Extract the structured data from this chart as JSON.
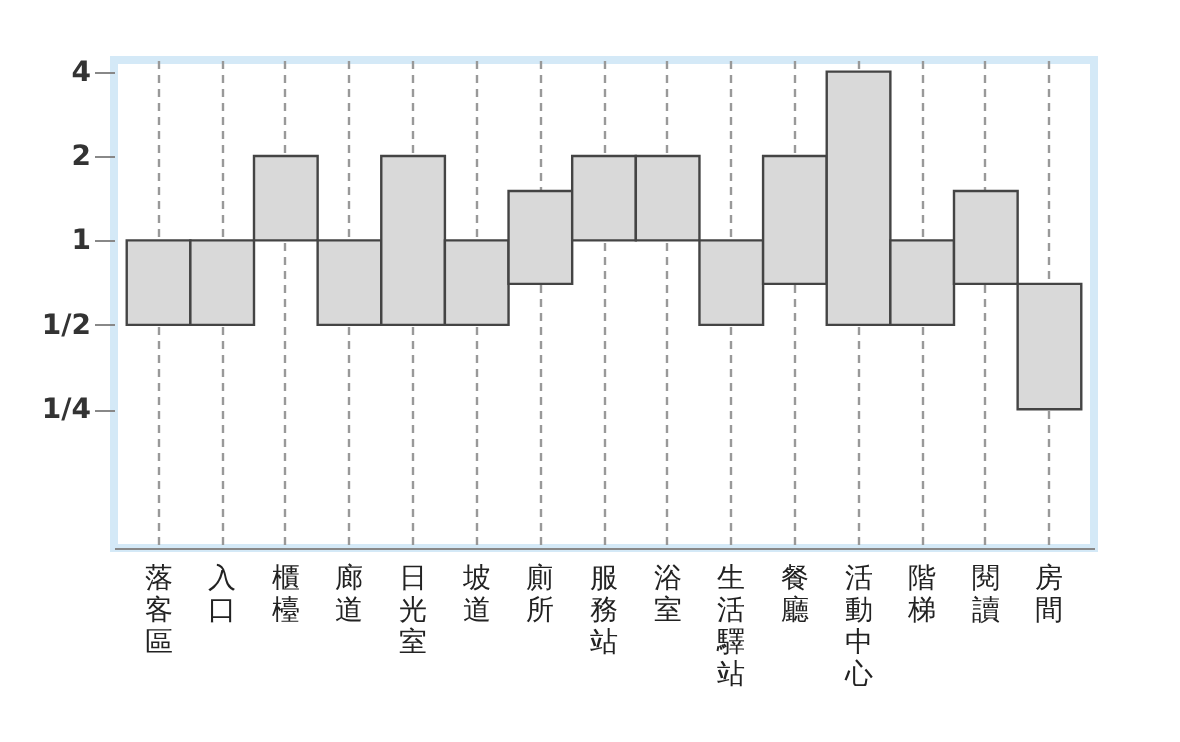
{
  "chart_data": {
    "type": "bar",
    "categories": [
      "落客區",
      "入口",
      "櫃檯",
      "廊道",
      "日光室",
      "坡道",
      "廁所",
      "服務站",
      "浴室",
      "生活驛站",
      "餐廳",
      "活動中心",
      "階梯",
      "閱讀",
      "房間"
    ],
    "base": [
      0.5,
      0.5,
      1,
      0.5,
      0.5,
      0.5,
      0.7,
      1,
      1,
      0.5,
      0.7,
      0.5,
      0.5,
      0.7,
      0.25
    ],
    "values": [
      0.5,
      0.5,
      1,
      0.5,
      1.5,
      0.5,
      0.8,
      1,
      1,
      0.5,
      1.3,
      3.5,
      0.5,
      0.8,
      0.45
    ],
    "color": "#d9d9d9",
    "log": true,
    "ylim": [
      0.08,
      4.4
    ],
    "yticks": [
      {
        "value": 0.25,
        "label": "1/4"
      },
      {
        "value": 0.5,
        "label": "1/2"
      },
      1,
      2,
      4
    ],
    "grid": "x"
  }
}
